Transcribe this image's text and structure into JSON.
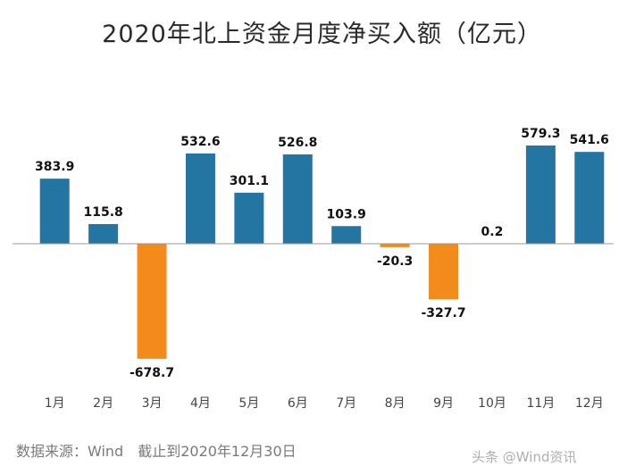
{
  "title": "2020年北上资金月度净买入额（亿元）",
  "source_note": "数据来源：Wind　截止到2020年12月30日",
  "watermark": "头条 @Wind资讯",
  "chart_data": {
    "type": "bar",
    "title": "2020年北上资金月度净买入额（亿元）",
    "categories": [
      "1月",
      "2月",
      "3月",
      "4月",
      "5月",
      "6月",
      "7月",
      "8月",
      "9月",
      "10月",
      "11月",
      "12月"
    ],
    "values": [
      383.9,
      115.8,
      -678.7,
      532.6,
      301.1,
      526.8,
      103.9,
      -20.3,
      -327.7,
      0.2,
      579.3,
      541.6
    ],
    "value_labels": [
      "383.9",
      "115.8",
      "-678.7",
      "532.6",
      "301.1",
      "526.8",
      "103.9",
      "-20.3",
      "-327.7",
      "0.2",
      "579.3",
      "541.6"
    ],
    "ylim": [
      -678.7,
      579.3
    ],
    "grid": false,
    "legend": "none",
    "colors": {
      "positive": "#2575a3",
      "negative": "#f28a1c",
      "axis": "#9a9a9a",
      "label": "#111111",
      "tick": "#444444"
    }
  }
}
